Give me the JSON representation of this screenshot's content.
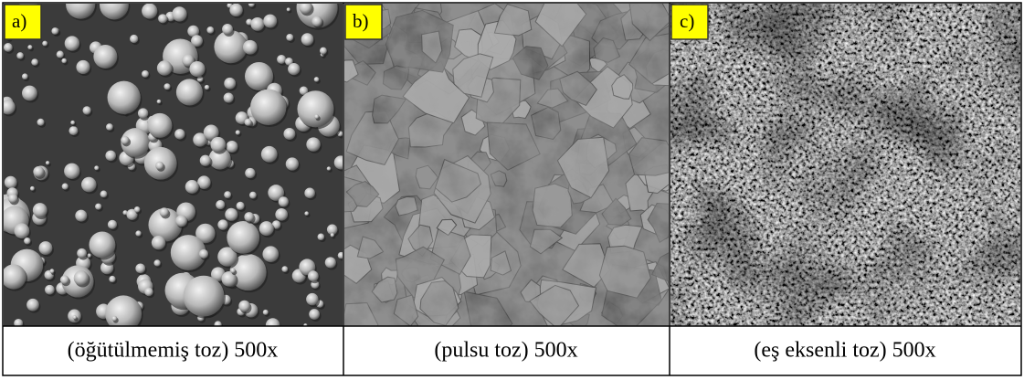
{
  "figure": {
    "panels": [
      {
        "label": "a)",
        "caption": "(öğütülmemiş toz) 500x"
      },
      {
        "label": "b)",
        "caption": "(pulsu toz) 500x"
      },
      {
        "label": "c)",
        "caption": "(eş eksenli toz) 500x"
      }
    ]
  }
}
